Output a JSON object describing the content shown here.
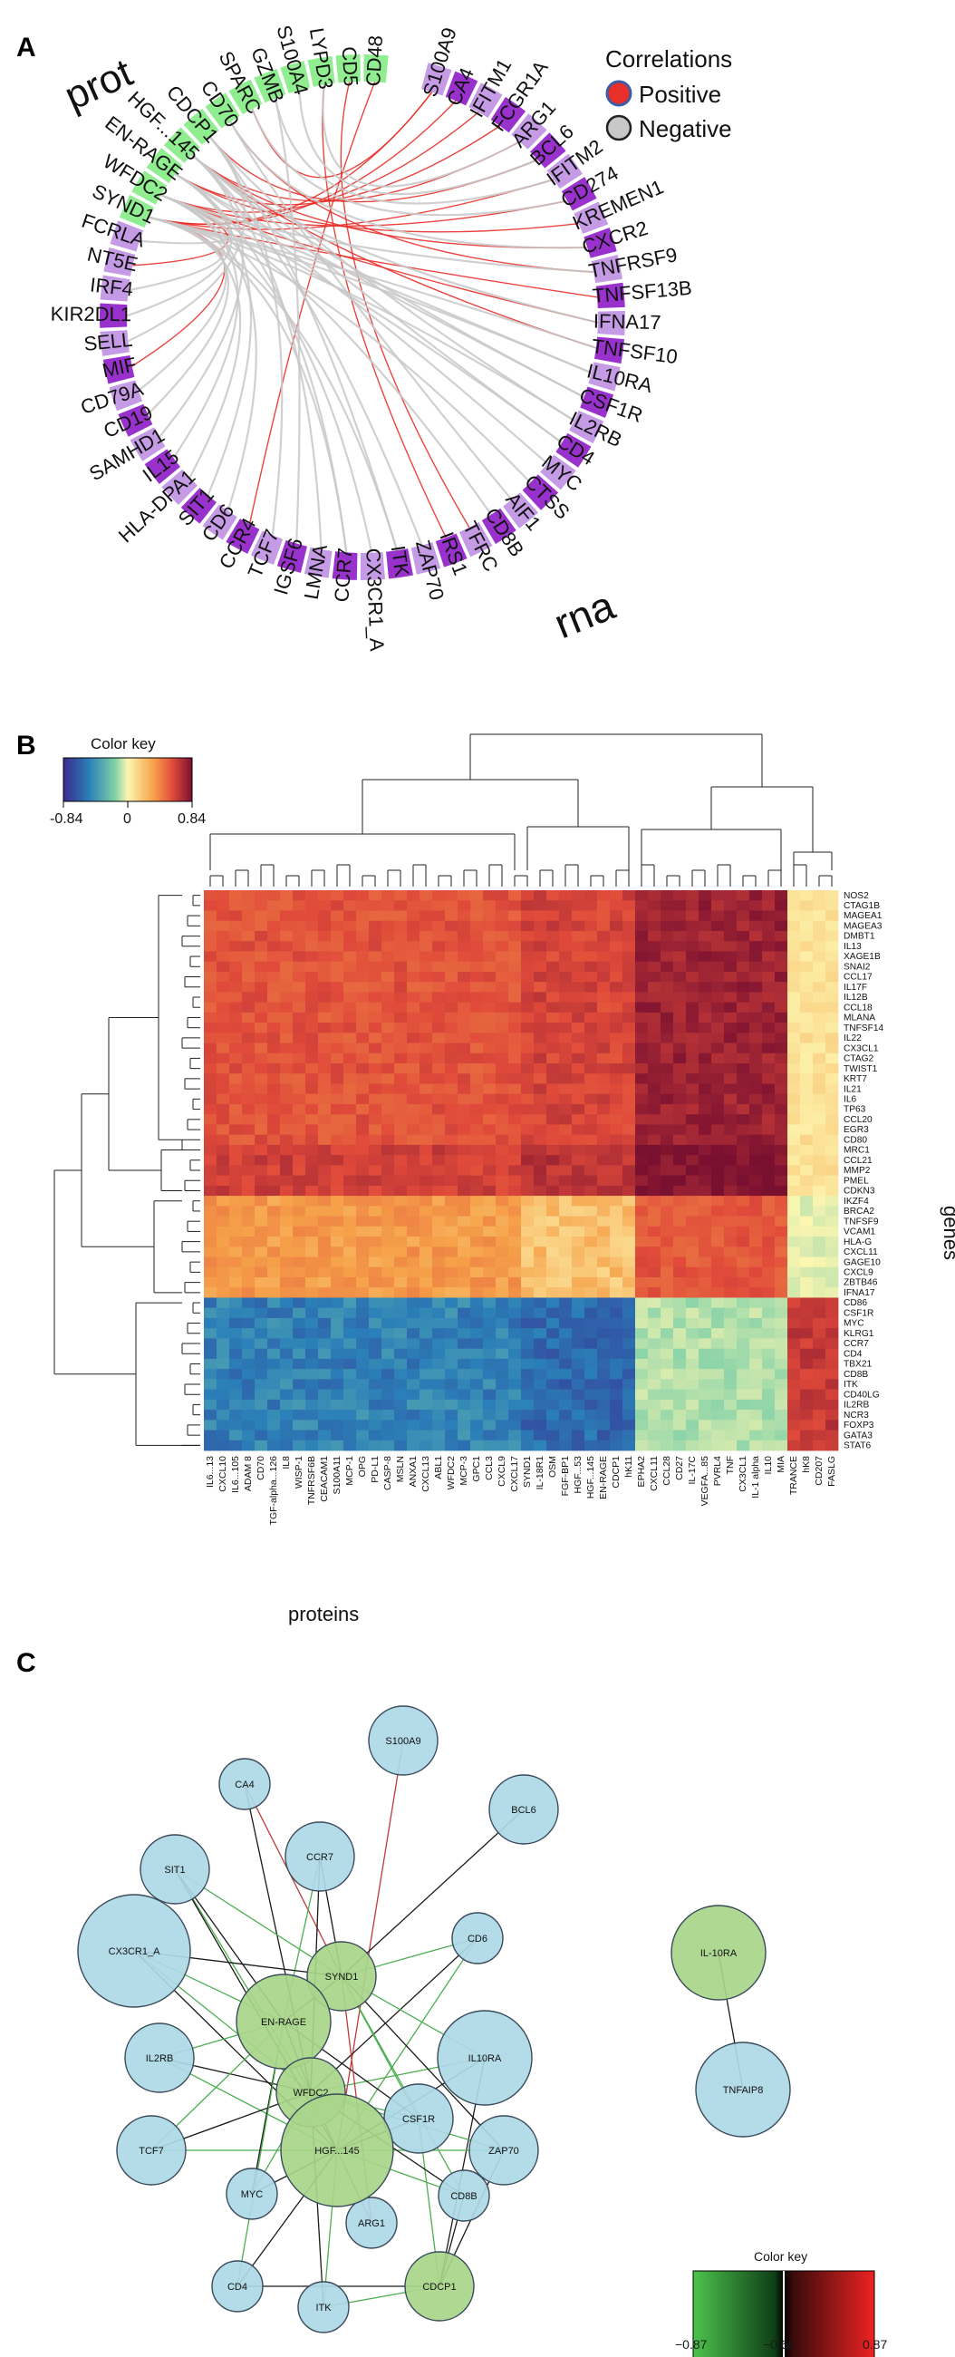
{
  "panels": {
    "a": "A",
    "b": "B",
    "c": "C"
  },
  "colors": {
    "prot": "#90ee90",
    "rna_dark": "#9932cc",
    "rna_light": "#c59be6",
    "positive": "#e8302a",
    "negative": "#c8c8c8",
    "node_blue": "#add8e6",
    "node_green": "#a8d68a"
  },
  "chart_data": [
    {
      "type": "chord",
      "group_labels": {
        "prot": "prot",
        "rna": "rna"
      },
      "legend": {
        "title": "Correlations",
        "positive": "Positive",
        "negative": "Negative"
      },
      "sectors": [
        {
          "name": "CD48",
          "g": "p"
        },
        {
          "name": "CD5",
          "g": "p"
        },
        {
          "name": "LYPD3",
          "g": "p"
        },
        {
          "name": "S100A4",
          "g": "p"
        },
        {
          "name": "GZMB",
          "g": "p"
        },
        {
          "name": "SPARC",
          "g": "p"
        },
        {
          "name": "CD70",
          "g": "p"
        },
        {
          "name": "CDCP1",
          "g": "p"
        },
        {
          "name": "HGF...145",
          "g": "p"
        },
        {
          "name": "EN-RAGE",
          "g": "p"
        },
        {
          "name": "WFDC2",
          "g": "p"
        },
        {
          "name": "SYND1",
          "g": "p"
        },
        {
          "name": "FCRLA",
          "g": "l"
        },
        {
          "name": "NT5E",
          "g": "l"
        },
        {
          "name": "IRF4",
          "g": "l"
        },
        {
          "name": "KIR2DL1",
          "g": "d"
        },
        {
          "name": "SELL",
          "g": "l"
        },
        {
          "name": "MIF",
          "g": "d"
        },
        {
          "name": "CD79A",
          "g": "l"
        },
        {
          "name": "CD19",
          "g": "d"
        },
        {
          "name": "SAMHD1",
          "g": "l"
        },
        {
          "name": "IL15",
          "g": "d"
        },
        {
          "name": "HLA-DPA1",
          "g": "l"
        },
        {
          "name": "SIT1",
          "g": "d"
        },
        {
          "name": "CD6",
          "g": "l"
        },
        {
          "name": "CCR4",
          "g": "d"
        },
        {
          "name": "TCF7",
          "g": "l"
        },
        {
          "name": "IGSF6",
          "g": "d"
        },
        {
          "name": "LMNA",
          "g": "l"
        },
        {
          "name": "CCR7",
          "g": "d"
        },
        {
          "name": "CX3CR1_A",
          "g": "l"
        },
        {
          "name": "ITK",
          "g": "d"
        },
        {
          "name": "ZAP70",
          "g": "l"
        },
        {
          "name": "IRS1",
          "g": "d"
        },
        {
          "name": "TFRC",
          "g": "l"
        },
        {
          "name": "CD8B",
          "g": "d"
        },
        {
          "name": "AIF1",
          "g": "l"
        },
        {
          "name": "CTSS",
          "g": "d"
        },
        {
          "name": "MYC",
          "g": "l"
        },
        {
          "name": "CD4",
          "g": "d"
        },
        {
          "name": "IL2RB",
          "g": "l"
        },
        {
          "name": "CSF1R",
          "g": "d"
        },
        {
          "name": "IL10RA",
          "g": "l"
        },
        {
          "name": "TNFSF10",
          "g": "d"
        },
        {
          "name": "IFNA17",
          "g": "l"
        },
        {
          "name": "TNFSF13B",
          "g": "d"
        },
        {
          "name": "TNFRSF9",
          "g": "l"
        },
        {
          "name": "CXCR2",
          "g": "d"
        },
        {
          "name": "KREMEN1",
          "g": "l"
        },
        {
          "name": "CD274",
          "g": "d"
        },
        {
          "name": "IFITM2",
          "g": "l"
        },
        {
          "name": "BCL6",
          "g": "d"
        },
        {
          "name": "ARG1",
          "g": "l"
        },
        {
          "name": "FCGR1A",
          "g": "d"
        },
        {
          "name": "IFITM1",
          "g": "l"
        },
        {
          "name": "CA4",
          "g": "d"
        },
        {
          "name": "S100A9",
          "g": "l"
        }
      ],
      "links": [
        [
          "S100A9",
          "SYND1",
          "pos"
        ],
        [
          "CA4",
          "SYND1",
          "pos"
        ],
        [
          "IFITM1",
          "WFDC2",
          "pos"
        ],
        [
          "FCGR1A",
          "EN-RAGE",
          "pos"
        ],
        [
          "ARG1",
          "HGF...145",
          "pos"
        ],
        [
          "BCL6",
          "CDCP1",
          "pos"
        ],
        [
          "IFITM2",
          "SYND1",
          "pos"
        ],
        [
          "CD274",
          "WFDC2",
          "pos"
        ],
        [
          "KREMEN1",
          "EN-RAGE",
          "pos"
        ],
        [
          "CXCR2",
          "HGF...145",
          "pos"
        ],
        [
          "TNFRSF9",
          "CD70",
          "pos"
        ],
        [
          "TNFSF13B",
          "SYND1",
          "pos"
        ],
        [
          "IFNA17",
          "WFDC2",
          "pos"
        ],
        [
          "TNFSF10",
          "HGF...145",
          "pos"
        ],
        [
          "CD48",
          "CCR4",
          "pos"
        ],
        [
          "MIF",
          "SYND1",
          "pos"
        ],
        [
          "NT5E",
          "WFDC2",
          "pos"
        ],
        [
          "TFRC",
          "CD5",
          "pos"
        ],
        [
          "IRS1",
          "LYPD3",
          "pos"
        ],
        [
          "SPARC",
          "S100A9",
          "pos"
        ],
        [
          "IL10RA",
          "SYND1",
          "neg"
        ],
        [
          "IL10RA",
          "WFDC2",
          "neg"
        ],
        [
          "CSF1R",
          "EN-RAGE",
          "neg"
        ],
        [
          "CSF1R",
          "HGF...145",
          "neg"
        ],
        [
          "IL2RB",
          "SYND1",
          "neg"
        ],
        [
          "IL2RB",
          "CDCP1",
          "neg"
        ],
        [
          "CD4",
          "WFDC2",
          "neg"
        ],
        [
          "CD4",
          "HGF...145",
          "neg"
        ],
        [
          "MYC",
          "EN-RAGE",
          "neg"
        ],
        [
          "CTSS",
          "SYND1",
          "neg"
        ],
        [
          "AIF1",
          "CD70",
          "neg"
        ],
        [
          "CD8B",
          "WFDC2",
          "neg"
        ],
        [
          "ZAP70",
          "HGF...145",
          "neg"
        ],
        [
          "ITK",
          "CDCP1",
          "neg"
        ],
        [
          "ITK",
          "SYND1",
          "neg"
        ],
        [
          "CX3CR1_A",
          "WFDC2",
          "neg"
        ],
        [
          "CCR7",
          "EN-RAGE",
          "neg"
        ],
        [
          "CCR7",
          "SYND1",
          "neg"
        ],
        [
          "LMNA",
          "HGF...145",
          "neg"
        ],
        [
          "IGSF6",
          "GZMB",
          "neg"
        ],
        [
          "TCF7",
          "CDCP1",
          "neg"
        ],
        [
          "CD6",
          "WFDC2",
          "neg"
        ],
        [
          "SIT1",
          "EN-RAGE",
          "neg"
        ],
        [
          "HLA-DPA1",
          "SYND1",
          "neg"
        ],
        [
          "IL15",
          "WFDC2",
          "neg"
        ],
        [
          "SAMHD1",
          "HGF...145",
          "neg"
        ],
        [
          "CD19",
          "SYND1",
          "neg"
        ],
        [
          "SELL",
          "CDCP1",
          "neg"
        ],
        [
          "KIR2DL1",
          "EN-RAGE",
          "neg"
        ],
        [
          "IRF4",
          "SYND1",
          "neg"
        ],
        [
          "FCRLA",
          "WFDC2",
          "neg"
        ],
        [
          "CD79A",
          "SYND1",
          "neg"
        ],
        [
          "TNFSF10",
          "SYND1",
          "neg"
        ],
        [
          "IFNA17",
          "HGF...145",
          "neg"
        ],
        [
          "TNFRSF9",
          "WFDC2",
          "neg"
        ],
        [
          "CXCR2",
          "CD70",
          "neg"
        ],
        [
          "CD274",
          "SPARC",
          "neg"
        ],
        [
          "IFITM2",
          "GZMB",
          "neg"
        ],
        [
          "BCL6",
          "S100A4",
          "neg"
        ],
        [
          "ARG1",
          "LYPD3",
          "neg"
        ]
      ]
    },
    {
      "type": "heatmap",
      "color_key": {
        "title": "Color key",
        "min": -0.84,
        "mid": 0,
        "max": 0.84,
        "ticks": [
          "-0.84",
          "0",
          "0.84"
        ]
      },
      "xlabel": "proteins",
      "ylabel": "genes",
      "columns": [
        "IL6...13",
        "CXCL10",
        "IL6...105",
        "ADAM 8",
        "CD70",
        "TGF-alpha...126",
        "IL8",
        "WISP-1",
        "TNFRSF6B",
        "CEACAM1",
        "S100A11",
        "MCP-1",
        "OPG",
        "PD-L1",
        "CASP-8",
        "MSLN",
        "ANXA1",
        "CXCL13",
        "ABL1",
        "WFDC2",
        "MCP-3",
        "GPC1",
        "CCL3",
        "CXCL9",
        "CXCL17",
        "SYND1",
        "IL-18R1",
        "OSM",
        "FGF-BP1",
        "HGF...53",
        "HGF...145",
        "EN-RAGE",
        "CDCP1",
        "hK11",
        "EPHA2",
        "CXCL11",
        "CCL28",
        "CD27",
        "IL-17C",
        "VEGFA...85",
        "PVRL4",
        "TNF",
        "CX3CL1",
        "IL-1 alpha",
        "IL10",
        "MIA",
        "TRANCE",
        "hK8",
        "CD207",
        "FASLG"
      ],
      "rows": [
        "NOS2",
        "CTAG1B",
        "MAGEA1",
        "MAGEA3",
        "DMBT1",
        "IL13",
        "XAGE1B",
        "SNAI2",
        "CCL17",
        "IL17F",
        "IL12B",
        "CCL18",
        "MLANA",
        "TNFSF14",
        "IL22",
        "CX3CL1",
        "CTAG2",
        "TWIST1",
        "KRT7",
        "IL21",
        "IL6",
        "TP63",
        "CCL20",
        "EGR3",
        "CD80",
        "MRC1",
        "CCL21",
        "MMP2",
        "PMEL",
        "CDKN3",
        "IKZF4",
        "BRCA2",
        "TNFSF9",
        "VCAM1",
        "HLA-G",
        "CXCL11",
        "GAGE10",
        "CXCL9",
        "ZBTB46",
        "IFNA17",
        "CD86",
        "CSF1R",
        "MYC",
        "KLRG1",
        "CCR7",
        "CD4",
        "TBX21",
        "CD8B",
        "ITK",
        "CD40LG",
        "IL2RB",
        "NCR3",
        "FOXP3",
        "GATA3",
        "STAT6"
      ],
      "row_blocks": [
        {
          "from": 0,
          "to": 24,
          "level": 0.52
        },
        {
          "from": 25,
          "to": 29,
          "level": 0.6
        },
        {
          "from": 30,
          "to": 39,
          "level": 0.28
        },
        {
          "from": 40,
          "to": 54,
          "level": -0.5
        }
      ],
      "col_blocks": [
        {
          "from": 0,
          "to": 24,
          "shift": 0.0
        },
        {
          "from": 25,
          "to": 33,
          "shift": 0.06
        },
        {
          "from": 34,
          "to": 45,
          "shift": 0.14
        },
        {
          "from": 46,
          "to": 49,
          "shift": -0.45
        }
      ]
    },
    {
      "type": "network",
      "color_key": {
        "title": "Color key",
        "ticks": [
          "−0.87",
          "−0.68",
          "0.87"
        ]
      },
      "nodes": [
        {
          "id": "S100A9",
          "kind": "rna",
          "size": "md"
        },
        {
          "id": "CA4",
          "kind": "rna",
          "size": "sm"
        },
        {
          "id": "BCL6",
          "kind": "rna",
          "size": "md"
        },
        {
          "id": "CCR7",
          "kind": "rna",
          "size": "md"
        },
        {
          "id": "SIT1",
          "kind": "rna",
          "size": "md"
        },
        {
          "id": "CX3CR1_A",
          "kind": "rna",
          "size": "xl"
        },
        {
          "id": "CD6",
          "kind": "rna",
          "size": "sm"
        },
        {
          "id": "SYND1",
          "kind": "prot",
          "size": "md"
        },
        {
          "id": "EN-RAGE",
          "kind": "prot",
          "size": "lg"
        },
        {
          "id": "IL2RB",
          "kind": "rna",
          "size": "md"
        },
        {
          "id": "IL10RA",
          "kind": "rna",
          "size": "lg"
        },
        {
          "id": "WFDC2",
          "kind": "prot",
          "size": "md"
        },
        {
          "id": "CSF1R",
          "kind": "rna",
          "size": "md"
        },
        {
          "id": "TCF7",
          "kind": "rna",
          "size": "md"
        },
        {
          "id": "HGF...145",
          "kind": "prot",
          "size": "xl"
        },
        {
          "id": "ZAP70",
          "kind": "rna",
          "size": "md"
        },
        {
          "id": "MYC",
          "kind": "rna",
          "size": "sm"
        },
        {
          "id": "CD8B",
          "kind": "rna",
          "size": "sm"
        },
        {
          "id": "ARG1",
          "kind": "rna",
          "size": "sm"
        },
        {
          "id": "CD4",
          "kind": "rna",
          "size": "sm"
        },
        {
          "id": "ITK",
          "kind": "rna",
          "size": "sm"
        },
        {
          "id": "CDCP1",
          "kind": "prot",
          "size": "md"
        },
        {
          "id": "IL-10RA",
          "kind": "prot",
          "size": "lg"
        },
        {
          "id": "TNFAIP8",
          "kind": "rna",
          "size": "lg"
        }
      ],
      "edges": [
        [
          "S100A9",
          "HGF...145",
          "red"
        ],
        [
          "CA4",
          "SYND1",
          "red"
        ],
        [
          "CA4",
          "WFDC2",
          "black"
        ],
        [
          "BCL6",
          "SYND1",
          "black"
        ],
        [
          "CCR7",
          "SYND1",
          "black"
        ],
        [
          "CCR7",
          "EN-RAGE",
          "green"
        ],
        [
          "CCR7",
          "WFDC2",
          "black"
        ],
        [
          "SIT1",
          "SYND1",
          "green"
        ],
        [
          "SIT1",
          "EN-RAGE",
          "black"
        ],
        [
          "SIT1",
          "WFDC2",
          "green"
        ],
        [
          "SIT1",
          "HGF...145",
          "black"
        ],
        [
          "CX3CR1_A",
          "EN-RAGE",
          "green"
        ],
        [
          "CX3CR1_A",
          "SYND1",
          "black"
        ],
        [
          "CX3CR1_A",
          "WFDC2",
          "green"
        ],
        [
          "CX3CR1_A",
          "HGF...145",
          "black"
        ],
        [
          "CD6",
          "SYND1",
          "green"
        ],
        [
          "CD6",
          "WFDC2",
          "black"
        ],
        [
          "CD6",
          "HGF...145",
          "green"
        ],
        [
          "IL2RB",
          "EN-RAGE",
          "green"
        ],
        [
          "IL2RB",
          "WFDC2",
          "black"
        ],
        [
          "IL2RB",
          "HGF...145",
          "green"
        ],
        [
          "IL10RA",
          "SYND1",
          "green"
        ],
        [
          "IL10RA",
          "WFDC2",
          "green"
        ],
        [
          "IL10RA",
          "HGF...145",
          "black"
        ],
        [
          "IL10RA",
          "CDCP1",
          "black"
        ],
        [
          "CSF1R",
          "SYND1",
          "green"
        ],
        [
          "CSF1R",
          "EN-RAGE",
          "black"
        ],
        [
          "CSF1R",
          "WFDC2",
          "green"
        ],
        [
          "CSF1R",
          "HGF...145",
          "black"
        ],
        [
          "CSF1R",
          "CDCP1",
          "green"
        ],
        [
          "TCF7",
          "EN-RAGE",
          "green"
        ],
        [
          "TCF7",
          "WFDC2",
          "black"
        ],
        [
          "TCF7",
          "HGF...145",
          "green"
        ],
        [
          "ZAP70",
          "SYND1",
          "black"
        ],
        [
          "ZAP70",
          "WFDC2",
          "green"
        ],
        [
          "ZAP70",
          "HGF...145",
          "green"
        ],
        [
          "ZAP70",
          "CDCP1",
          "black"
        ],
        [
          "MYC",
          "EN-RAGE",
          "black"
        ],
        [
          "MYC",
          "WFDC2",
          "green"
        ],
        [
          "MYC",
          "HGF...145",
          "black"
        ],
        [
          "CD8B",
          "SYND1",
          "green"
        ],
        [
          "CD8B",
          "WFDC2",
          "black"
        ],
        [
          "CD8B",
          "HGF...145",
          "green"
        ],
        [
          "CD8B",
          "CDCP1",
          "black"
        ],
        [
          "ARG1",
          "SYND1",
          "red"
        ],
        [
          "ARG1",
          "HGF...145",
          "red"
        ],
        [
          "CD4",
          "EN-RAGE",
          "green"
        ],
        [
          "CD4",
          "HGF...145",
          "black"
        ],
        [
          "CD4",
          "CDCP1",
          "black"
        ],
        [
          "ITK",
          "WFDC2",
          "black"
        ],
        [
          "ITK",
          "HGF...145",
          "green"
        ],
        [
          "ITK",
          "CDCP1",
          "green"
        ],
        [
          "SYND1",
          "EN-RAGE",
          "black"
        ],
        [
          "EN-RAGE",
          "WFDC2",
          "black"
        ],
        [
          "WFDC2",
          "HGF...145",
          "black"
        ],
        [
          "IL-10RA",
          "TNFAIP8",
          "black"
        ]
      ]
    }
  ]
}
